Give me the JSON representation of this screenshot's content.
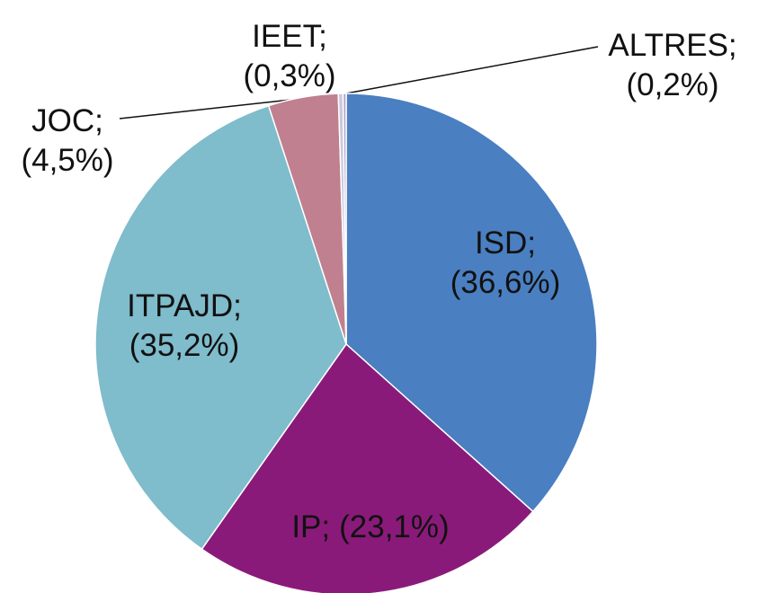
{
  "chart_data": {
    "type": "pie",
    "categories": [
      "ISD;",
      "IP;",
      "ITPAJD;",
      "JOC;",
      "IEET;",
      "ALTRES;"
    ],
    "values": [
      36.6,
      23.1,
      35.2,
      4.5,
      0.3,
      0.2
    ],
    "value_labels": [
      "(36,6%)",
      "(23,1%)",
      "(35,2%)",
      "(4,5%)",
      "(0,3%)",
      "(0,2%)"
    ],
    "colors": [
      "#4a7fc1",
      "#8a1a7a",
      "#7fbccc",
      "#c0808f",
      "#c9c9dd",
      "#b3a3cc"
    ]
  }
}
